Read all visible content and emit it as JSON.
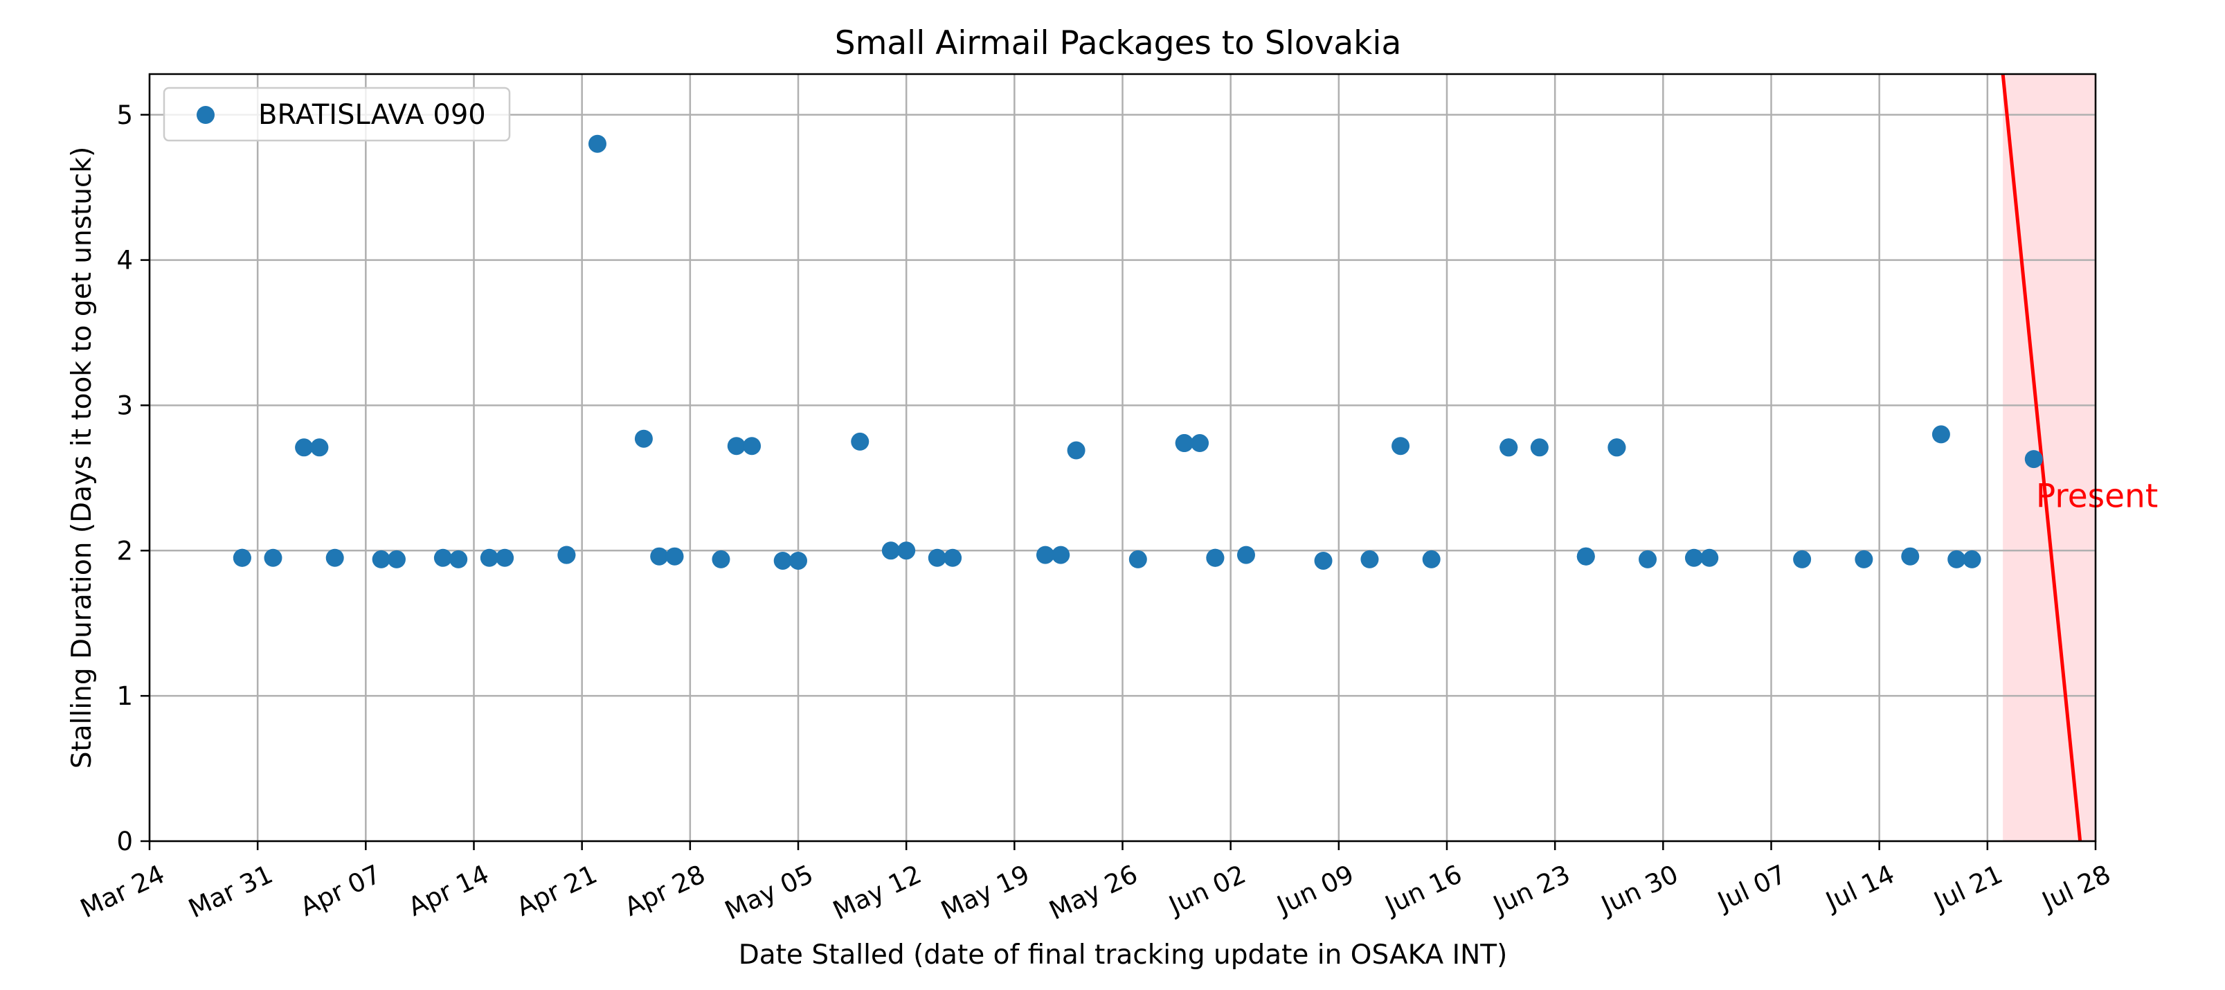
{
  "chart_data": {
    "type": "scatter",
    "title": "Small Airmail Packages to Slovakia",
    "xlabel": "Date Stalled (date of final tracking update in OSAKA INT)",
    "ylabel": "Stalling Duration (Days it took to get unstuck)",
    "xlim": [
      "2024-03-24",
      "2024-07-28"
    ],
    "ylim": [
      0,
      5.28
    ],
    "x_ticks": [
      "2024-03-24",
      "2024-03-31",
      "2024-04-07",
      "2024-04-14",
      "2024-04-21",
      "2024-04-28",
      "2024-05-05",
      "2024-05-12",
      "2024-05-19",
      "2024-05-26",
      "2024-06-02",
      "2024-06-09",
      "2024-06-16",
      "2024-06-23",
      "2024-06-30",
      "2024-07-07",
      "2024-07-14",
      "2024-07-21",
      "2024-07-28"
    ],
    "x_tick_labels": [
      "Mar 24",
      "Mar 31",
      "Apr 07",
      "Apr 14",
      "Apr 21",
      "Apr 28",
      "May 05",
      "May 12",
      "May 19",
      "May 26",
      "Jun 02",
      "Jun 09",
      "Jun 16",
      "Jun 23",
      "Jun 30",
      "Jul 07",
      "Jul 14",
      "Jul 21",
      "Jul 28"
    ],
    "y_ticks": [
      0,
      1,
      2,
      3,
      4,
      5
    ],
    "y_tick_labels": [
      "0",
      "1",
      "2",
      "3",
      "4",
      "5"
    ],
    "grid": true,
    "legend_position": "upper-left",
    "colors": {
      "series": "#1f77b4",
      "present_line": "#ff0000",
      "present_fill": "#ffe0e3"
    },
    "series": [
      {
        "name": "BRATISLAVA 090",
        "points": [
          {
            "x": "2024-03-30",
            "y": 1.95
          },
          {
            "x": "2024-03-30",
            "y": 1.95
          },
          {
            "x": "2024-04-01",
            "y": 1.95
          },
          {
            "x": "2024-04-03",
            "y": 2.71
          },
          {
            "x": "2024-04-04",
            "y": 2.71
          },
          {
            "x": "2024-04-05",
            "y": 1.95
          },
          {
            "x": "2024-04-08",
            "y": 1.94
          },
          {
            "x": "2024-04-09",
            "y": 1.94
          },
          {
            "x": "2024-04-12",
            "y": 1.95
          },
          {
            "x": "2024-04-13",
            "y": 1.94
          },
          {
            "x": "2024-04-15",
            "y": 1.95
          },
          {
            "x": "2024-04-16",
            "y": 1.95
          },
          {
            "x": "2024-04-20",
            "y": 1.97
          },
          {
            "x": "2024-04-20",
            "y": 1.97
          },
          {
            "x": "2024-04-22",
            "y": 4.8
          },
          {
            "x": "2024-04-25",
            "y": 2.77
          },
          {
            "x": "2024-04-26",
            "y": 1.96
          },
          {
            "x": "2024-04-27",
            "y": 1.96
          },
          {
            "x": "2024-04-30",
            "y": 1.94
          },
          {
            "x": "2024-05-01",
            "y": 2.72
          },
          {
            "x": "2024-05-02",
            "y": 2.72
          },
          {
            "x": "2024-05-04",
            "y": 1.93
          },
          {
            "x": "2024-05-05",
            "y": 1.93
          },
          {
            "x": "2024-05-09",
            "y": 2.75
          },
          {
            "x": "2024-05-11",
            "y": 2.0
          },
          {
            "x": "2024-05-12",
            "y": 2.0
          },
          {
            "x": "2024-05-14",
            "y": 1.95
          },
          {
            "x": "2024-05-15",
            "y": 1.95
          },
          {
            "x": "2024-05-21",
            "y": 1.97
          },
          {
            "x": "2024-05-22",
            "y": 1.97
          },
          {
            "x": "2024-05-23",
            "y": 2.69
          },
          {
            "x": "2024-05-27",
            "y": 1.94
          },
          {
            "x": "2024-05-30",
            "y": 2.74
          },
          {
            "x": "2024-05-30",
            "y": 2.74
          },
          {
            "x": "2024-05-31",
            "y": 2.74
          },
          {
            "x": "2024-06-01",
            "y": 1.95
          },
          {
            "x": "2024-06-01",
            "y": 1.95
          },
          {
            "x": "2024-06-03",
            "y": 1.97
          },
          {
            "x": "2024-06-08",
            "y": 1.93
          },
          {
            "x": "2024-06-11",
            "y": 1.94
          },
          {
            "x": "2024-06-13",
            "y": 2.72
          },
          {
            "x": "2024-06-15",
            "y": 1.94
          },
          {
            "x": "2024-06-20",
            "y": 2.71
          },
          {
            "x": "2024-06-20",
            "y": 2.71
          },
          {
            "x": "2024-06-22",
            "y": 2.71
          },
          {
            "x": "2024-06-25",
            "y": 1.96
          },
          {
            "x": "2024-06-25",
            "y": 1.96
          },
          {
            "x": "2024-06-27",
            "y": 2.71
          },
          {
            "x": "2024-06-27",
            "y": 2.71
          },
          {
            "x": "2024-06-29",
            "y": 1.94
          },
          {
            "x": "2024-07-02",
            "y": 1.95
          },
          {
            "x": "2024-07-03",
            "y": 1.95
          },
          {
            "x": "2024-07-09",
            "y": 1.94
          },
          {
            "x": "2024-07-13",
            "y": 1.94
          },
          {
            "x": "2024-07-16",
            "y": 1.96
          },
          {
            "x": "2024-07-18",
            "y": 2.8
          },
          {
            "x": "2024-07-19",
            "y": 1.94
          },
          {
            "x": "2024-07-20",
            "y": 1.94
          },
          {
            "x": "2024-07-24",
            "y": 2.63
          }
        ]
      }
    ],
    "annotations": [
      {
        "text": "Present",
        "line": [
          {
            "x": "2024-07-22",
            "y": 5.28
          },
          {
            "x": "2024-07-27",
            "y": 0
          }
        ],
        "shaded_region": [
          "2024-07-22",
          "2024-07-28"
        ],
        "text_position": {
          "x": "2024-07-24.5",
          "y": 2.3
        }
      }
    ]
  }
}
